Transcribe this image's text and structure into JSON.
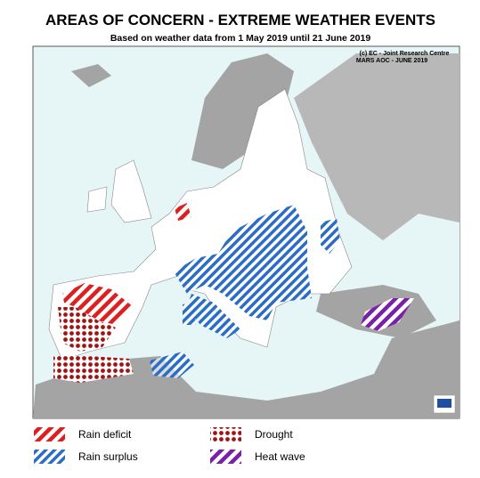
{
  "header": {
    "title": "AREAS OF CONCERN - EXTREME WEATHER EVENTS",
    "subtitle": "Based on weather data from 1 May 2019 until 21 June 2019"
  },
  "map": {
    "credit": [
      "(c) EC - Joint Research Centre",
      "MARS AOC - JUNE 2019"
    ]
  },
  "legend": {
    "items": [
      {
        "label": "Rain deficit"
      },
      {
        "label": "Drought"
      },
      {
        "label": "Rain surplus"
      },
      {
        "label": "Heat wave"
      }
    ]
  }
}
